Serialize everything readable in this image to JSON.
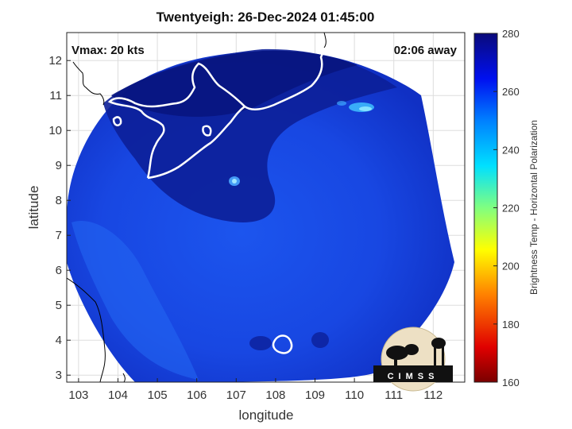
{
  "title": "Twentyeigh: 26-Dec-2024 01:45:00",
  "annotations": {
    "vmax": "Vmax: 20 kts",
    "away": "02:06 away"
  },
  "axes": {
    "xlabel": "longitude",
    "ylabel": "latitude",
    "xticks": [
      "103",
      "104",
      "105",
      "106",
      "107",
      "108",
      "109",
      "110",
      "111",
      "112"
    ],
    "yticks": [
      "3",
      "4",
      "5",
      "6",
      "7",
      "8",
      "9",
      "10",
      "11",
      "12"
    ],
    "xlim": [
      102.7,
      112.8
    ],
    "ylim": [
      2.8,
      12.8
    ]
  },
  "colorbar": {
    "label": "Brightness Temp - Horizontal Polarization",
    "ticks": [
      "160",
      "180",
      "200",
      "220",
      "240",
      "260",
      "280"
    ],
    "range": [
      160,
      280
    ]
  },
  "logo": {
    "text": "CIMSS"
  },
  "colors": {
    "swath_dark": "#0a1a8a",
    "swath_mid": "#1238d8",
    "swath_light": "#1e5cf0",
    "coast": "#ffffff",
    "land_line": "#000000"
  }
}
